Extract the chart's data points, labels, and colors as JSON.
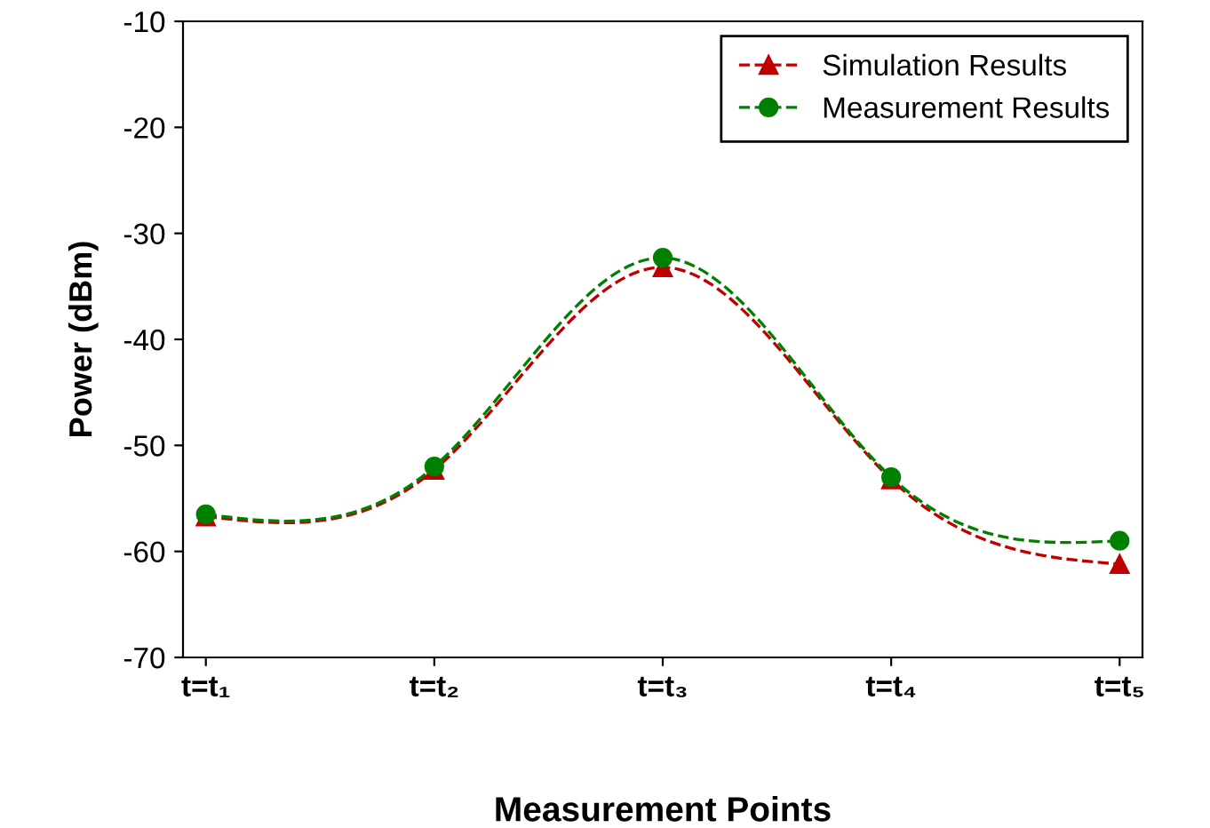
{
  "chart_data": {
    "type": "line",
    "xlabel": "Measurement Points",
    "ylabel": "Power (dBm)",
    "categories": [
      "t=t₁",
      "t=t₂",
      "t=t₃",
      "t=t₄",
      "t=t₅"
    ],
    "series": [
      {
        "name": "Simulation Results",
        "color": "#c00000",
        "marker": "triangle",
        "values": [
          -56.7,
          -52.3,
          -33.2,
          -53.2,
          -61.2
        ]
      },
      {
        "name": "Measurement Results",
        "color": "#008000",
        "marker": "circle",
        "values": [
          -56.5,
          -52.0,
          -32.3,
          -53.0,
          -59.0
        ]
      }
    ],
    "ylim": [
      -70,
      -10
    ],
    "yticks": [
      -70,
      -60,
      -50,
      -40,
      -30,
      -20,
      -10
    ],
    "line_style": "dashed",
    "grid": false,
    "legend": "top right"
  }
}
